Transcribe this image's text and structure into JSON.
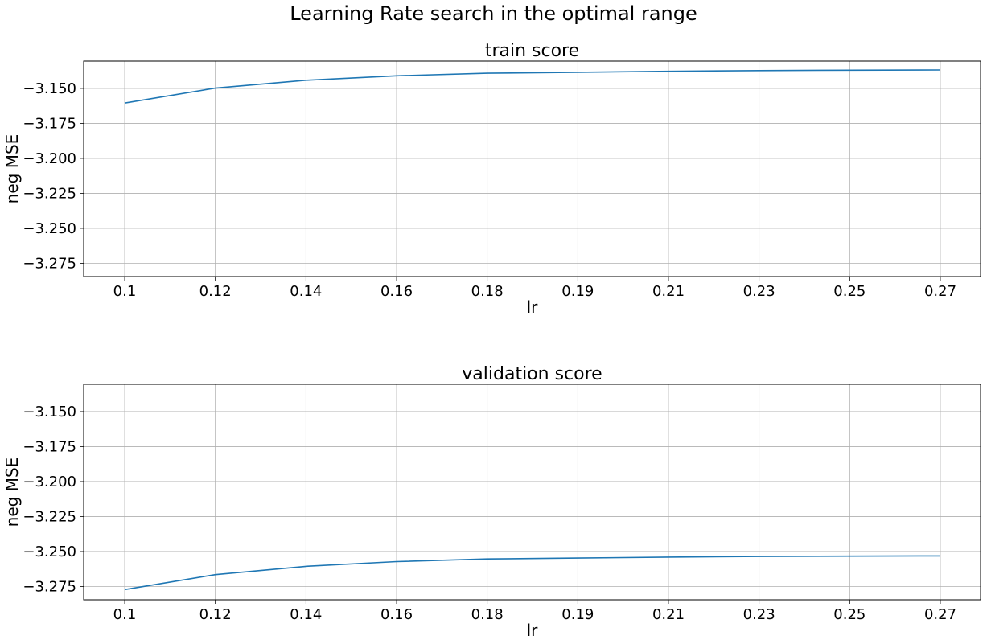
{
  "figure": {
    "suptitle": "Learning Rate search in the optimal range"
  },
  "colors": {
    "series": "#1f77b4",
    "grid": "#b0b0b0",
    "background": "#ffffff"
  },
  "chart_data": [
    {
      "type": "line",
      "title": "train score",
      "xlabel": "lr",
      "ylabel": "neg MSE",
      "grid": true,
      "x": [
        0.1,
        0.12,
        0.14,
        0.16,
        0.18,
        0.19,
        0.21,
        0.23,
        0.25,
        0.27
      ],
      "x_tick_labels": [
        "0.1",
        "0.12",
        "0.14",
        "0.16",
        "0.18",
        "0.19",
        "0.21",
        "0.23",
        "0.25",
        "0.27"
      ],
      "y_ticks": [
        -3.15,
        -3.175,
        -3.2,
        -3.225,
        -3.25,
        -3.275
      ],
      "y_tick_labels": [
        "−3.150",
        "−3.175",
        "−3.200",
        "−3.225",
        "−3.250",
        "−3.275"
      ],
      "ylim": [
        -3.2845,
        -3.1305
      ],
      "series": [
        {
          "values": [
            -3.1605,
            -3.1498,
            -3.1442,
            -3.141,
            -3.1392,
            -3.1385,
            -3.1378,
            -3.1373,
            -3.137,
            -3.1368
          ]
        }
      ]
    },
    {
      "type": "line",
      "title": "validation score",
      "xlabel": "lr",
      "ylabel": "neg MSE",
      "grid": true,
      "x": [
        0.1,
        0.12,
        0.14,
        0.16,
        0.18,
        0.19,
        0.21,
        0.23,
        0.25,
        0.27
      ],
      "x_tick_labels": [
        "0.1",
        "0.12",
        "0.14",
        "0.16",
        "0.18",
        "0.19",
        "0.21",
        "0.23",
        "0.25",
        "0.27"
      ],
      "y_ticks": [
        -3.15,
        -3.175,
        -3.2,
        -3.225,
        -3.25,
        -3.275
      ],
      "y_tick_labels": [
        "−3.150",
        "−3.175",
        "−3.200",
        "−3.225",
        "−3.250",
        "−3.275"
      ],
      "ylim": [
        -3.2845,
        -3.1305
      ],
      "series": [
        {
          "values": [
            -3.2772,
            -3.2665,
            -3.2606,
            -3.2572,
            -3.2553,
            -3.2547,
            -3.254,
            -3.2535,
            -3.2533,
            -3.2531
          ]
        }
      ]
    }
  ]
}
